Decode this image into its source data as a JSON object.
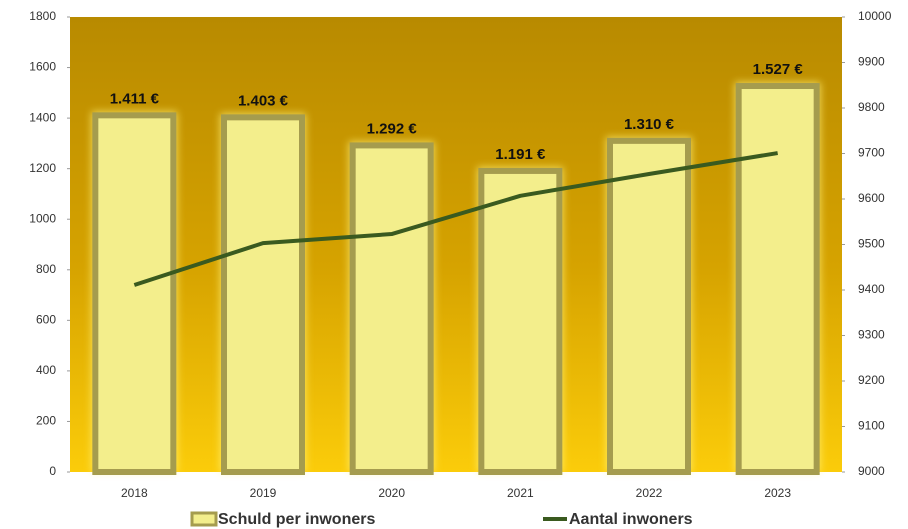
{
  "chart_data": {
    "type": "bar",
    "categories": [
      "2018",
      "2019",
      "2020",
      "2021",
      "2022",
      "2023"
    ],
    "series": [
      {
        "name": "Schuld per inwoners",
        "type": "bar",
        "color": "#f3ee8c",
        "values": [
          1411,
          1403,
          1292,
          1191,
          1310,
          1527
        ],
        "value_labels": [
          "1.411 €",
          "1.403 €",
          "1.292 €",
          "1.191 €",
          "1.310 €",
          "1.527 €"
        ]
      },
      {
        "name": "Aantal inwoners",
        "type": "line",
        "axis": "y2",
        "color": "#3a5a1f",
        "values": [
          9411,
          9503,
          9523,
          9607,
          9655,
          9701
        ]
      }
    ],
    "ylim": [
      0,
      1800
    ],
    "yticks": [
      0,
      200,
      400,
      600,
      800,
      1000,
      1200,
      1400,
      1600,
      1800
    ],
    "y2lim": [
      9000,
      10000
    ],
    "y2ticks": [
      9000,
      9100,
      9200,
      9300,
      9400,
      9500,
      9600,
      9700,
      9800,
      9900,
      10000
    ],
    "legend": "bottom"
  }
}
